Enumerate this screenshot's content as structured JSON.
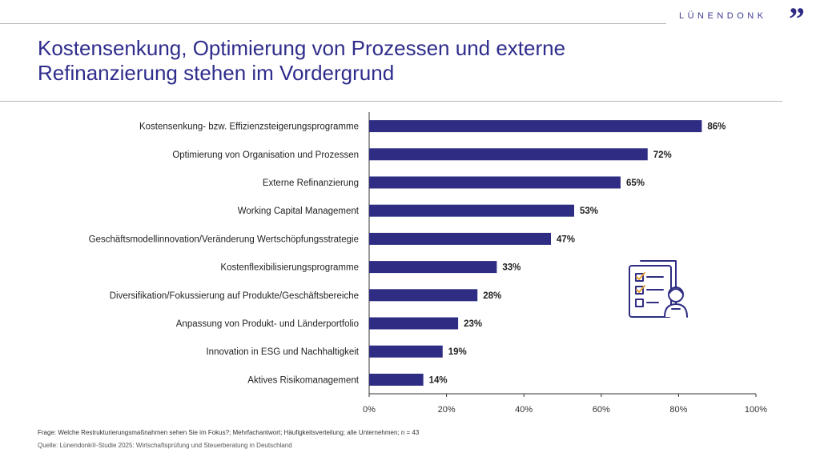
{
  "brand": {
    "name": "LÜNENDONK",
    "quote": "”"
  },
  "title": "Kostensenkung, Optimierung von Prozessen und externe Refinanzierung stehen im Vordergrund",
  "colors": {
    "bar": "#2e2d83",
    "title": "#2f2d8c"
  },
  "chart_data": {
    "type": "bar",
    "orientation": "horizontal",
    "categories": [
      "Kostensenkung- bzw. Effizienzsteigerungsprogramme",
      "Optimierung von Organisation und Prozessen",
      "Externe Refinanzierung",
      "Working Capital Management",
      "Geschäftsmodellinnovation/Veränderung Wertschöpfungsstrategie",
      "Kostenflexibilisierungsprogramme",
      "Diversifikation/Fokussierung auf Produkte/Geschäftsbereiche",
      "Anpassung von Produkt- und Länderportfolio",
      "Innovation in ESG und Nachhaltigkeit",
      "Aktives Risikomanagement"
    ],
    "values": [
      86,
      72,
      65,
      53,
      47,
      33,
      28,
      23,
      19,
      14
    ],
    "value_labels": [
      "86%",
      "72%",
      "65%",
      "53%",
      "47%",
      "33%",
      "28%",
      "23%",
      "19%",
      "14%"
    ],
    "xlim": [
      0,
      100
    ],
    "xticks": [
      0,
      20,
      40,
      60,
      80,
      100
    ],
    "xtick_labels": [
      "0%",
      "20%",
      "40%",
      "60%",
      "80%",
      "100%"
    ],
    "title": "",
    "xlabel": "",
    "ylabel": "",
    "grid": false,
    "legend": "none"
  },
  "footnote": "Frage: Welche Restrukturierungsmaßnahmen sehen Sie im Fokus?; Mehrfachantwort; Häufigkeitsverteilung; alle Unternehmen; n = 43",
  "source": "Quelle: Lünendonk®-Studie 2025: Wirtschaftsprüfung und Steuerberatung in Deutschland",
  "illustration": {
    "icon": "checklist-person-icon"
  }
}
